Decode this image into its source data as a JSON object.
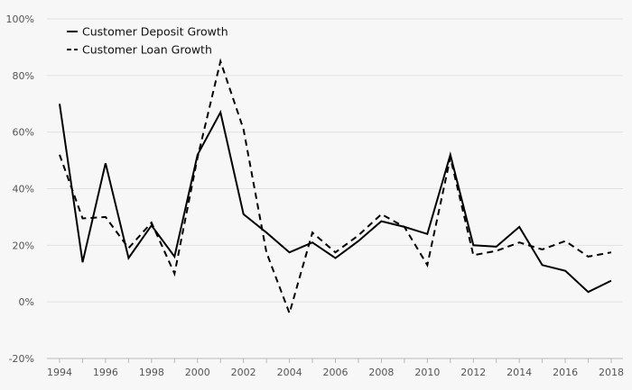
{
  "chart_data": {
    "type": "line",
    "title": "",
    "xlabel": "",
    "ylabel": "",
    "x": [
      1994,
      1995,
      1996,
      1997,
      1998,
      1999,
      2000,
      2001,
      2002,
      2003,
      2004,
      2005,
      2006,
      2007,
      2008,
      2009,
      2010,
      2011,
      2012,
      2013,
      2014,
      2015,
      2016,
      2017,
      2018
    ],
    "xticks": [
      "1994",
      "1996",
      "1998",
      "2000",
      "2002",
      "2004",
      "2006",
      "2008",
      "2010",
      "2012",
      "2014",
      "2016",
      "2018"
    ],
    "ylim": [
      -20,
      100
    ],
    "yticks": [
      -20,
      0,
      20,
      40,
      60,
      80,
      100
    ],
    "ytick_labels": [
      "-20%",
      "0%",
      "20%",
      "40%",
      "60%",
      "80%",
      "100%"
    ],
    "grid": "horizontal",
    "legend_position": "top-left",
    "series": [
      {
        "name": "Customer Deposit Growth",
        "style": "solid",
        "color": "#000000",
        "values": [
          70,
          14,
          49,
          15.5,
          27,
          16,
          52,
          67,
          31,
          24.5,
          17.5,
          21,
          15.5,
          21.5,
          28.5,
          26.5,
          24,
          52,
          20,
          19.5,
          26.5,
          13,
          11,
          3.5,
          7.5
        ]
      },
      {
        "name": "Customer Loan Growth",
        "style": "dashed",
        "color": "#000000",
        "values": [
          52,
          29.5,
          30,
          19,
          28,
          10,
          51,
          85,
          61,
          17.5,
          -4,
          24.5,
          17.5,
          23.5,
          31,
          26.5,
          13,
          51,
          16.5,
          18,
          21,
          18.5,
          21.5,
          16,
          17.5
        ]
      }
    ]
  }
}
